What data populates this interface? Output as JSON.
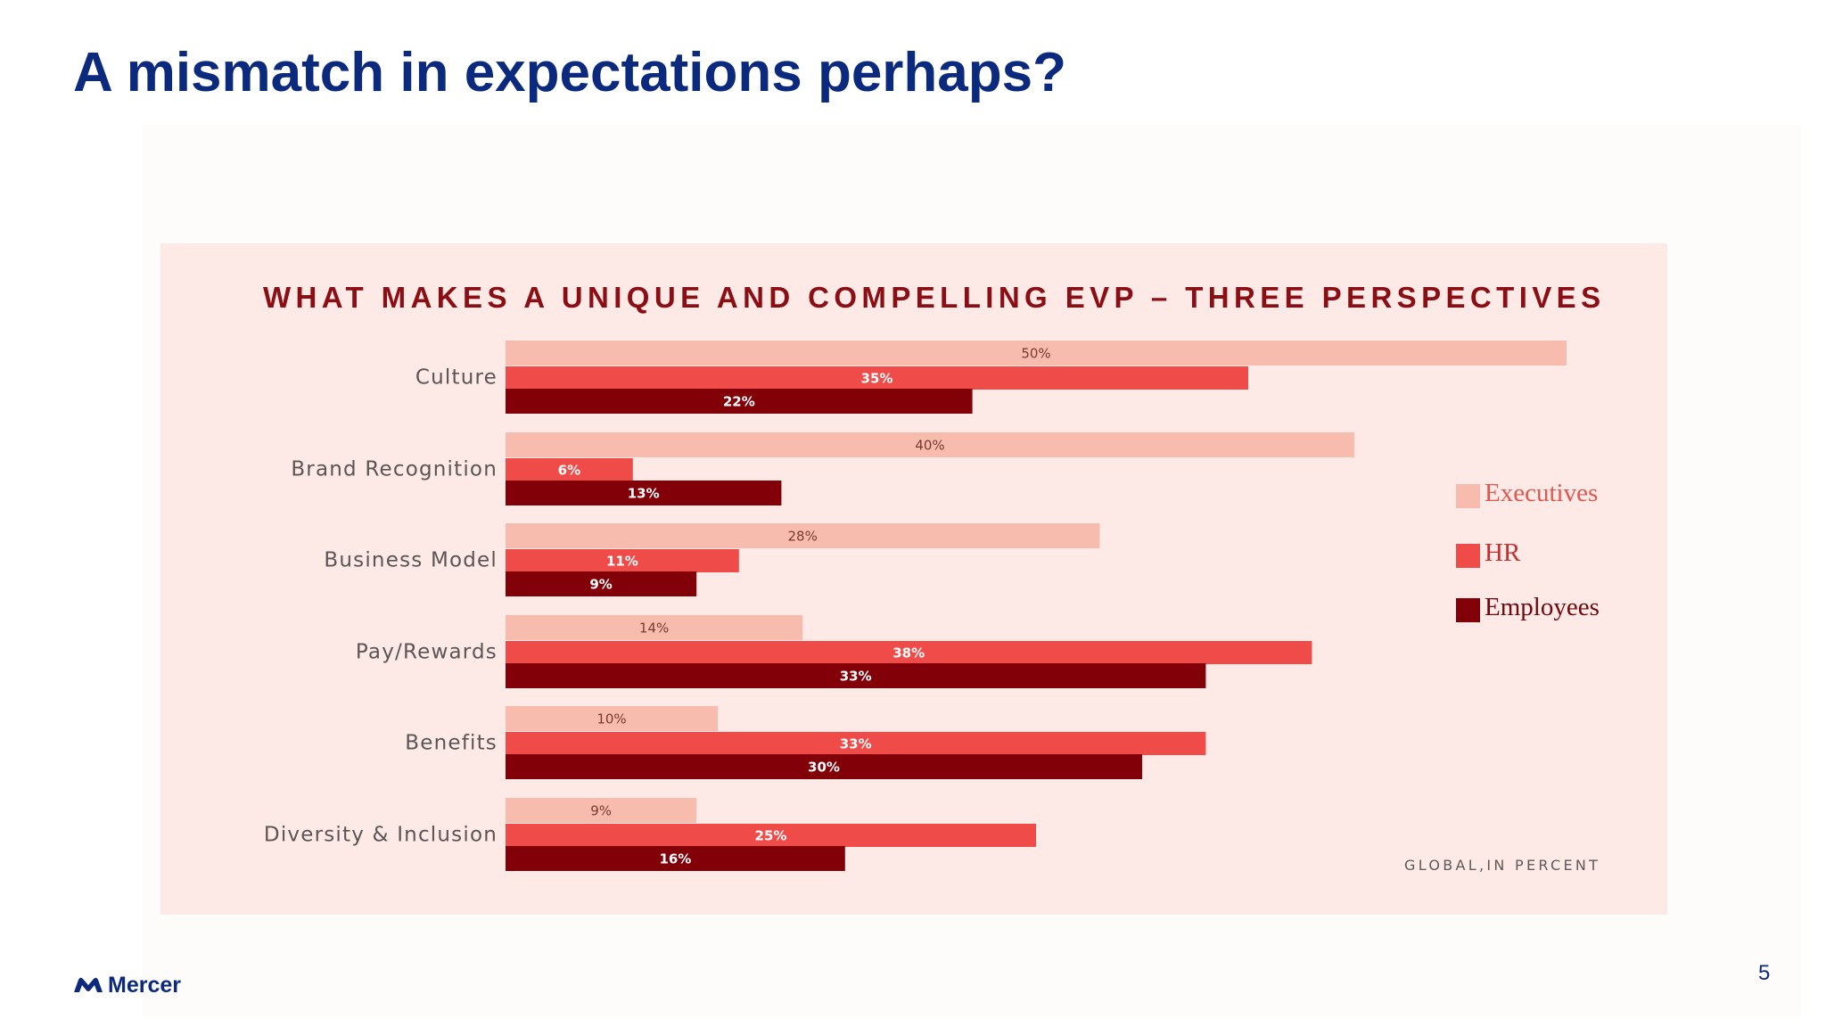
{
  "slide": {
    "title": "A mismatch in expectations perhaps?",
    "page_number": "5",
    "logo_text": "Mercer"
  },
  "colors": {
    "title": "#0b2a7e",
    "chart_title": "#8a0e14",
    "panel_background": "#fde9e6",
    "executives": "#f8bcae",
    "hr": "#ef4b49",
    "employees": "#820007"
  },
  "chart_data": {
    "type": "bar",
    "orientation": "horizontal",
    "title": "WHAT MAKES A UNIQUE AND COMPELLING EVP – THREE PERSPECTIVES",
    "categories": [
      "Culture",
      "Brand Recognition",
      "Business Model",
      "Pay/Rewards",
      "Benefits",
      "Diversity & Inclusion"
    ],
    "series": [
      {
        "name": "Executives",
        "values": [
          50,
          40,
          28,
          14,
          10,
          9
        ]
      },
      {
        "name": "HR",
        "values": [
          35,
          6,
          11,
          38,
          33,
          25
        ]
      },
      {
        "name": "Employees",
        "values": [
          22,
          13,
          9,
          33,
          30,
          16
        ]
      }
    ],
    "value_suffix": "%",
    "xlim": [
      0,
      50
    ],
    "grid": false,
    "legend": "right",
    "footnote": "GLOBAL,IN PERCENT"
  }
}
